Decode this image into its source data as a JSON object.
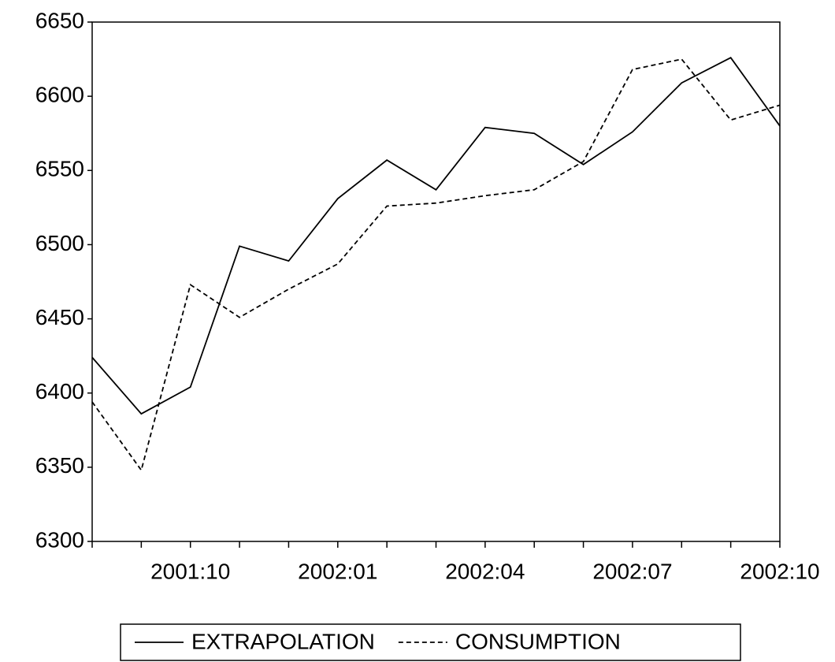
{
  "chart_data": {
    "type": "line",
    "categories": [
      null,
      null,
      "2001:10",
      null,
      null,
      "2002:01",
      null,
      null,
      "2002:04",
      null,
      null,
      "2002:07",
      null,
      null,
      "2002:10"
    ],
    "series": [
      {
        "name": "EXTRAPOLATION",
        "color": "#000000",
        "line_style": "solid",
        "values": [
          6424,
          6386,
          6404,
          6499,
          6489,
          6531,
          6557,
          6537,
          6579,
          6575,
          6554,
          6576,
          6609,
          6626,
          6580
        ]
      },
      {
        "name": "CONSUMPTION",
        "color": "#000000",
        "line_style": "dashed",
        "values": [
          6394,
          6348,
          6473,
          6451,
          6470,
          6487,
          6526,
          6528,
          6533,
          6537,
          6556,
          6618,
          6625,
          6584,
          6594
        ]
      }
    ],
    "ylim": [
      6300,
      6650
    ],
    "yticks": [
      6300,
      6350,
      6400,
      6450,
      6500,
      6550,
      6600,
      6650
    ],
    "legend": "bottom"
  }
}
